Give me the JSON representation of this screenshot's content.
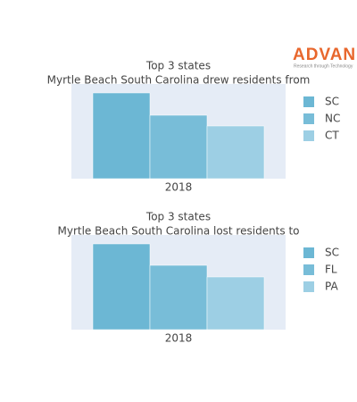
{
  "logo": {
    "name": "ADVAN",
    "tagline": "Research through Technology"
  },
  "chart_data": [
    {
      "type": "bar",
      "title": "Top 3 states",
      "subtitle": "Myrtle Beach South Carolina drew residents from",
      "categories": [
        "2018"
      ],
      "ylim": [
        0,
        106
      ],
      "plot_background": "#e5ecf6",
      "series": [
        {
          "name": "SC",
          "color": "#6cb7d4",
          "values": [
            96
          ]
        },
        {
          "name": "NC",
          "color": "#78bdd8",
          "values": [
            71
          ]
        },
        {
          "name": "CT",
          "color": "#9dcfe4",
          "values": [
            59
          ]
        }
      ]
    },
    {
      "type": "bar",
      "title": "Top 3 states",
      "subtitle": "Myrtle Beach South Carolina lost residents to",
      "categories": [
        "2018"
      ],
      "ylim": [
        0,
        106
      ],
      "plot_background": "#e5ecf6",
      "series": [
        {
          "name": "SC",
          "color": "#6cb7d4",
          "values": [
            96
          ]
        },
        {
          "name": "FL",
          "color": "#78bdd8",
          "values": [
            72
          ]
        },
        {
          "name": "PA",
          "color": "#9dcfe4",
          "values": [
            59
          ]
        }
      ]
    }
  ]
}
